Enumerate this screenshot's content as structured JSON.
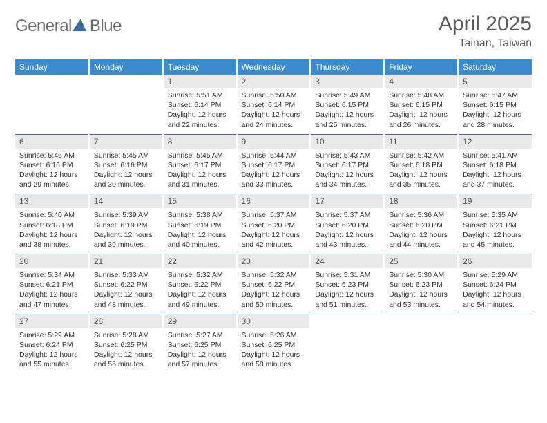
{
  "branding": {
    "logo_word1": "General",
    "logo_word2": "Blue",
    "logo_text_color": "#6a6a6a",
    "logo_accent_color": "#2f6fb0",
    "logo_icon_fill": "#2f6fb0"
  },
  "header": {
    "title": "April 2025",
    "location": "Tainan, Taiwan",
    "title_color": "#5a5a5a",
    "title_fontsize": 30,
    "location_fontsize": 16
  },
  "calendar": {
    "weekday_labels": [
      "Sunday",
      "Monday",
      "Tuesday",
      "Wednesday",
      "Thursday",
      "Friday",
      "Saturday"
    ],
    "header_bg": "#3a8bd0",
    "header_text_color": "#ffffff",
    "header_fontsize": 12,
    "daynum_bg": "#e9e9e9",
    "daynum_color": "#555555",
    "daynum_fontsize": 12,
    "cell_fontsize": 10.5,
    "cell_text_color": "#333333",
    "row_border_color": "#3a6fa5",
    "col_gap_color": "#ffffff",
    "first_weekday_index": 2,
    "days": [
      {
        "n": "1",
        "sr": "Sunrise: 5:51 AM",
        "ss": "Sunset: 6:14 PM",
        "dl": "Daylight: 12 hours and 22 minutes."
      },
      {
        "n": "2",
        "sr": "Sunrise: 5:50 AM",
        "ss": "Sunset: 6:14 PM",
        "dl": "Daylight: 12 hours and 24 minutes."
      },
      {
        "n": "3",
        "sr": "Sunrise: 5:49 AM",
        "ss": "Sunset: 6:15 PM",
        "dl": "Daylight: 12 hours and 25 minutes."
      },
      {
        "n": "4",
        "sr": "Sunrise: 5:48 AM",
        "ss": "Sunset: 6:15 PM",
        "dl": "Daylight: 12 hours and 26 minutes."
      },
      {
        "n": "5",
        "sr": "Sunrise: 5:47 AM",
        "ss": "Sunset: 6:15 PM",
        "dl": "Daylight: 12 hours and 28 minutes."
      },
      {
        "n": "6",
        "sr": "Sunrise: 5:46 AM",
        "ss": "Sunset: 6:16 PM",
        "dl": "Daylight: 12 hours and 29 minutes."
      },
      {
        "n": "7",
        "sr": "Sunrise: 5:45 AM",
        "ss": "Sunset: 6:16 PM",
        "dl": "Daylight: 12 hours and 30 minutes."
      },
      {
        "n": "8",
        "sr": "Sunrise: 5:45 AM",
        "ss": "Sunset: 6:17 PM",
        "dl": "Daylight: 12 hours and 31 minutes."
      },
      {
        "n": "9",
        "sr": "Sunrise: 5:44 AM",
        "ss": "Sunset: 6:17 PM",
        "dl": "Daylight: 12 hours and 33 minutes."
      },
      {
        "n": "10",
        "sr": "Sunrise: 5:43 AM",
        "ss": "Sunset: 6:17 PM",
        "dl": "Daylight: 12 hours and 34 minutes."
      },
      {
        "n": "11",
        "sr": "Sunrise: 5:42 AM",
        "ss": "Sunset: 6:18 PM",
        "dl": "Daylight: 12 hours and 35 minutes."
      },
      {
        "n": "12",
        "sr": "Sunrise: 5:41 AM",
        "ss": "Sunset: 6:18 PM",
        "dl": "Daylight: 12 hours and 37 minutes."
      },
      {
        "n": "13",
        "sr": "Sunrise: 5:40 AM",
        "ss": "Sunset: 6:18 PM",
        "dl": "Daylight: 12 hours and 38 minutes."
      },
      {
        "n": "14",
        "sr": "Sunrise: 5:39 AM",
        "ss": "Sunset: 6:19 PM",
        "dl": "Daylight: 12 hours and 39 minutes."
      },
      {
        "n": "15",
        "sr": "Sunrise: 5:38 AM",
        "ss": "Sunset: 6:19 PM",
        "dl": "Daylight: 12 hours and 40 minutes."
      },
      {
        "n": "16",
        "sr": "Sunrise: 5:37 AM",
        "ss": "Sunset: 6:20 PM",
        "dl": "Daylight: 12 hours and 42 minutes."
      },
      {
        "n": "17",
        "sr": "Sunrise: 5:37 AM",
        "ss": "Sunset: 6:20 PM",
        "dl": "Daylight: 12 hours and 43 minutes."
      },
      {
        "n": "18",
        "sr": "Sunrise: 5:36 AM",
        "ss": "Sunset: 6:20 PM",
        "dl": "Daylight: 12 hours and 44 minutes."
      },
      {
        "n": "19",
        "sr": "Sunrise: 5:35 AM",
        "ss": "Sunset: 6:21 PM",
        "dl": "Daylight: 12 hours and 45 minutes."
      },
      {
        "n": "20",
        "sr": "Sunrise: 5:34 AM",
        "ss": "Sunset: 6:21 PM",
        "dl": "Daylight: 12 hours and 47 minutes."
      },
      {
        "n": "21",
        "sr": "Sunrise: 5:33 AM",
        "ss": "Sunset: 6:22 PM",
        "dl": "Daylight: 12 hours and 48 minutes."
      },
      {
        "n": "22",
        "sr": "Sunrise: 5:32 AM",
        "ss": "Sunset: 6:22 PM",
        "dl": "Daylight: 12 hours and 49 minutes."
      },
      {
        "n": "23",
        "sr": "Sunrise: 5:32 AM",
        "ss": "Sunset: 6:22 PM",
        "dl": "Daylight: 12 hours and 50 minutes."
      },
      {
        "n": "24",
        "sr": "Sunrise: 5:31 AM",
        "ss": "Sunset: 6:23 PM",
        "dl": "Daylight: 12 hours and 51 minutes."
      },
      {
        "n": "25",
        "sr": "Sunrise: 5:30 AM",
        "ss": "Sunset: 6:23 PM",
        "dl": "Daylight: 12 hours and 53 minutes."
      },
      {
        "n": "26",
        "sr": "Sunrise: 5:29 AM",
        "ss": "Sunset: 6:24 PM",
        "dl": "Daylight: 12 hours and 54 minutes."
      },
      {
        "n": "27",
        "sr": "Sunrise: 5:29 AM",
        "ss": "Sunset: 6:24 PM",
        "dl": "Daylight: 12 hours and 55 minutes."
      },
      {
        "n": "28",
        "sr": "Sunrise: 5:28 AM",
        "ss": "Sunset: 6:25 PM",
        "dl": "Daylight: 12 hours and 56 minutes."
      },
      {
        "n": "29",
        "sr": "Sunrise: 5:27 AM",
        "ss": "Sunset: 6:25 PM",
        "dl": "Daylight: 12 hours and 57 minutes."
      },
      {
        "n": "30",
        "sr": "Sunrise: 5:26 AM",
        "ss": "Sunset: 6:25 PM",
        "dl": "Daylight: 12 hours and 58 minutes."
      }
    ]
  }
}
